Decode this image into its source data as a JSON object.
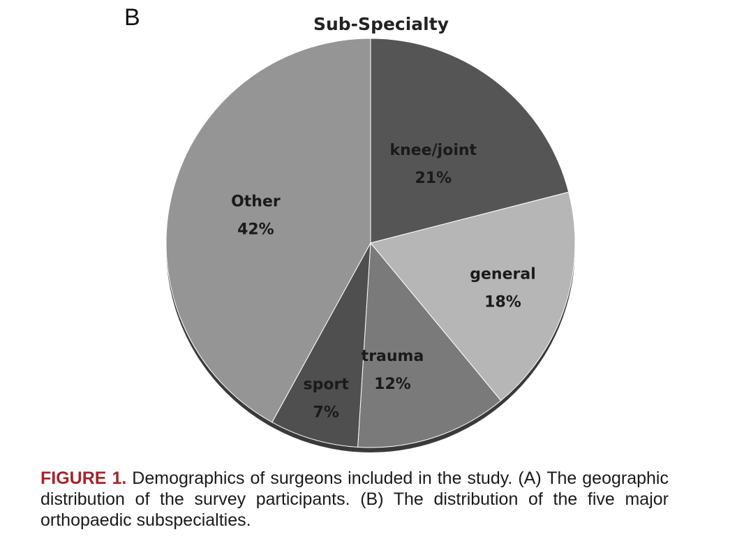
{
  "panel_letter": "B",
  "caption": {
    "label": "FIGURE 1.",
    "text": " Demographics of surgeons included in the study. (A) The geographic distribution of the survey participants. (B) The distribution of the five major orthopaedic subspecialties."
  },
  "chart_data": {
    "type": "pie",
    "title": "Sub-Specialty",
    "slices": [
      {
        "label": "knee/joint",
        "value": 21,
        "value_label": "21%",
        "color": "#555555"
      },
      {
        "label": "general",
        "value": 18,
        "value_label": "18%",
        "color": "#b6b6b6"
      },
      {
        "label": "trauma",
        "value": 12,
        "value_label": "12%",
        "color": "#7a7a7a"
      },
      {
        "label": "sport",
        "value": 7,
        "value_label": "7%",
        "color": "#4f4f4f"
      },
      {
        "label": "Other",
        "value": 42,
        "value_label": "42%",
        "color": "#959595"
      }
    ],
    "start": "12 o'clock",
    "direction": "clockwise",
    "legend": "none"
  }
}
